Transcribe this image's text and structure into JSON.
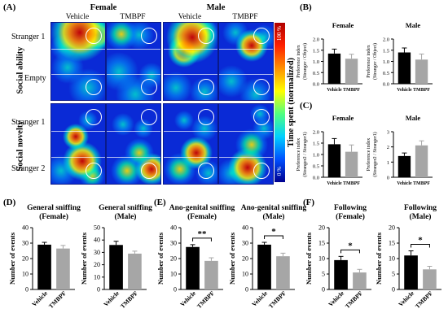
{
  "panels": {
    "A": {
      "label": "(A)",
      "female": "Female",
      "male": "Male",
      "vehicle": "Vehicle",
      "tmbpf": "TMBPF",
      "rows": {
        "social_ability": "Social ability",
        "social_novelty": "Social novelty",
        "stranger1": "Stranger 1",
        "empty": "Empty",
        "stranger1b": "Stranger 1",
        "stranger2": "Stranger 2"
      },
      "colorbar": {
        "label": "Time spent (normalized)",
        "top": "100 %",
        "bottom": "0 %"
      }
    },
    "B": "(B)",
    "C": "(C)",
    "D": "(D)",
    "E": "(E)",
    "F": "(F)"
  },
  "colors": {
    "vehicle": "#000000",
    "tmbpf": "#a6a6a6",
    "heat_bg": "#0b2bd0"
  },
  "chart_data": [
    {
      "id": "B-female",
      "panel": "B",
      "type": "bar",
      "title": "Female",
      "ylabel": "Preference index\n(Stranger / Object)",
      "categories": [
        "Vehicle",
        "TMBPF"
      ],
      "values": [
        1.35,
        1.12
      ],
      "errors": [
        0.2,
        0.2
      ],
      "ylim": [
        0,
        2.0
      ],
      "yticks": [
        "0.0",
        "0.5",
        "1.0",
        "1.5",
        "2.0"
      ],
      "sig": ""
    },
    {
      "id": "B-male",
      "panel": "B",
      "type": "bar",
      "title": "Male",
      "ylabel": "Preference index\n(Stranger / Object)",
      "categories": [
        "Vehicle",
        "TMBPF"
      ],
      "values": [
        1.4,
        1.08
      ],
      "errors": [
        0.2,
        0.25
      ],
      "ylim": [
        0,
        2.0
      ],
      "yticks": [
        "0.0",
        "0.5",
        "1.0",
        "1.5",
        "2.0"
      ],
      "sig": ""
    },
    {
      "id": "C-female",
      "panel": "C",
      "type": "bar",
      "title": "Female",
      "ylabel": "Preference index\n(Stranger2 / Stranger1)",
      "categories": [
        "Vehicle",
        "TMBPF"
      ],
      "values": [
        1.45,
        1.12
      ],
      "errors": [
        0.25,
        0.3
      ],
      "ylim": [
        0,
        2.0
      ],
      "yticks": [
        "0.0",
        "0.5",
        "1.0",
        "1.5",
        "2.0"
      ],
      "sig": ""
    },
    {
      "id": "C-male",
      "panel": "C",
      "type": "bar",
      "title": "Male",
      "ylabel": "Preference index\n(Stranger2 / Stranger1)",
      "categories": [
        "Vehicle",
        "TMBPF"
      ],
      "values": [
        1.4,
        2.1
      ],
      "errors": [
        0.2,
        0.3
      ],
      "ylim": [
        0,
        3
      ],
      "yticks": [
        "0",
        "1",
        "2",
        "3"
      ],
      "sig": ""
    },
    {
      "id": "D-female",
      "panel": "D",
      "type": "bar",
      "title": "General sniffing\n(Female)",
      "ylabel": "Number of events",
      "categories": [
        "Vehicle",
        "TMBPF"
      ],
      "values": [
        29,
        26.5
      ],
      "errors": [
        1.5,
        2
      ],
      "ylim": [
        0,
        40
      ],
      "yticks": [
        "0",
        "10",
        "20",
        "30",
        "40"
      ],
      "sig": ""
    },
    {
      "id": "D-male",
      "panel": "D",
      "type": "bar",
      "title": "General sniffing\n(Male)",
      "ylabel": "Number of events",
      "categories": [
        "Vehicle",
        "TMBPF"
      ],
      "values": [
        36,
        29
      ],
      "errors": [
        3,
        2
      ],
      "ylim": [
        0,
        50
      ],
      "yticks": [
        "0",
        "10",
        "20",
        "30",
        "40",
        "50"
      ],
      "sig": ""
    },
    {
      "id": "E-female",
      "panel": "E",
      "type": "bar",
      "title": "Ano-genital sniffing\n(Female)",
      "ylabel": "Number of events",
      "categories": [
        "Vehicle",
        "TMBPF"
      ],
      "values": [
        27.5,
        18.5
      ],
      "errors": [
        1.5,
        2
      ],
      "ylim": [
        0,
        40
      ],
      "yticks": [
        "0",
        "10",
        "20",
        "30",
        "40"
      ],
      "sig": "**"
    },
    {
      "id": "E-male",
      "panel": "E",
      "type": "bar",
      "title": "Ano-genital sniffing\n(Male)",
      "ylabel": "Number of events",
      "categories": [
        "Vehicle",
        "TMBPF"
      ],
      "values": [
        29,
        21.5
      ],
      "errors": [
        1.5,
        2
      ],
      "ylim": [
        0,
        40
      ],
      "yticks": [
        "0",
        "10",
        "20",
        "30",
        "40"
      ],
      "sig": "*"
    },
    {
      "id": "F-female",
      "panel": "F",
      "type": "bar",
      "title": "Following\n(Female)",
      "ylabel": "Number of events",
      "categories": [
        "Vehicle",
        "TMBPF"
      ],
      "values": [
        9.5,
        5.5
      ],
      "errors": [
        1.2,
        1
      ],
      "ylim": [
        0,
        20
      ],
      "yticks": [
        "0",
        "5",
        "10",
        "15",
        "20"
      ],
      "sig": "*"
    },
    {
      "id": "F-male",
      "panel": "F",
      "type": "bar",
      "title": "Following\n(Male)",
      "ylabel": "Number of events",
      "categories": [
        "Vehicle",
        "TMBPF"
      ],
      "values": [
        11,
        6.5
      ],
      "errors": [
        1.5,
        1
      ],
      "ylim": [
        0,
        20
      ],
      "yticks": [
        "0",
        "5",
        "10",
        "15",
        "20"
      ],
      "sig": "*"
    }
  ]
}
